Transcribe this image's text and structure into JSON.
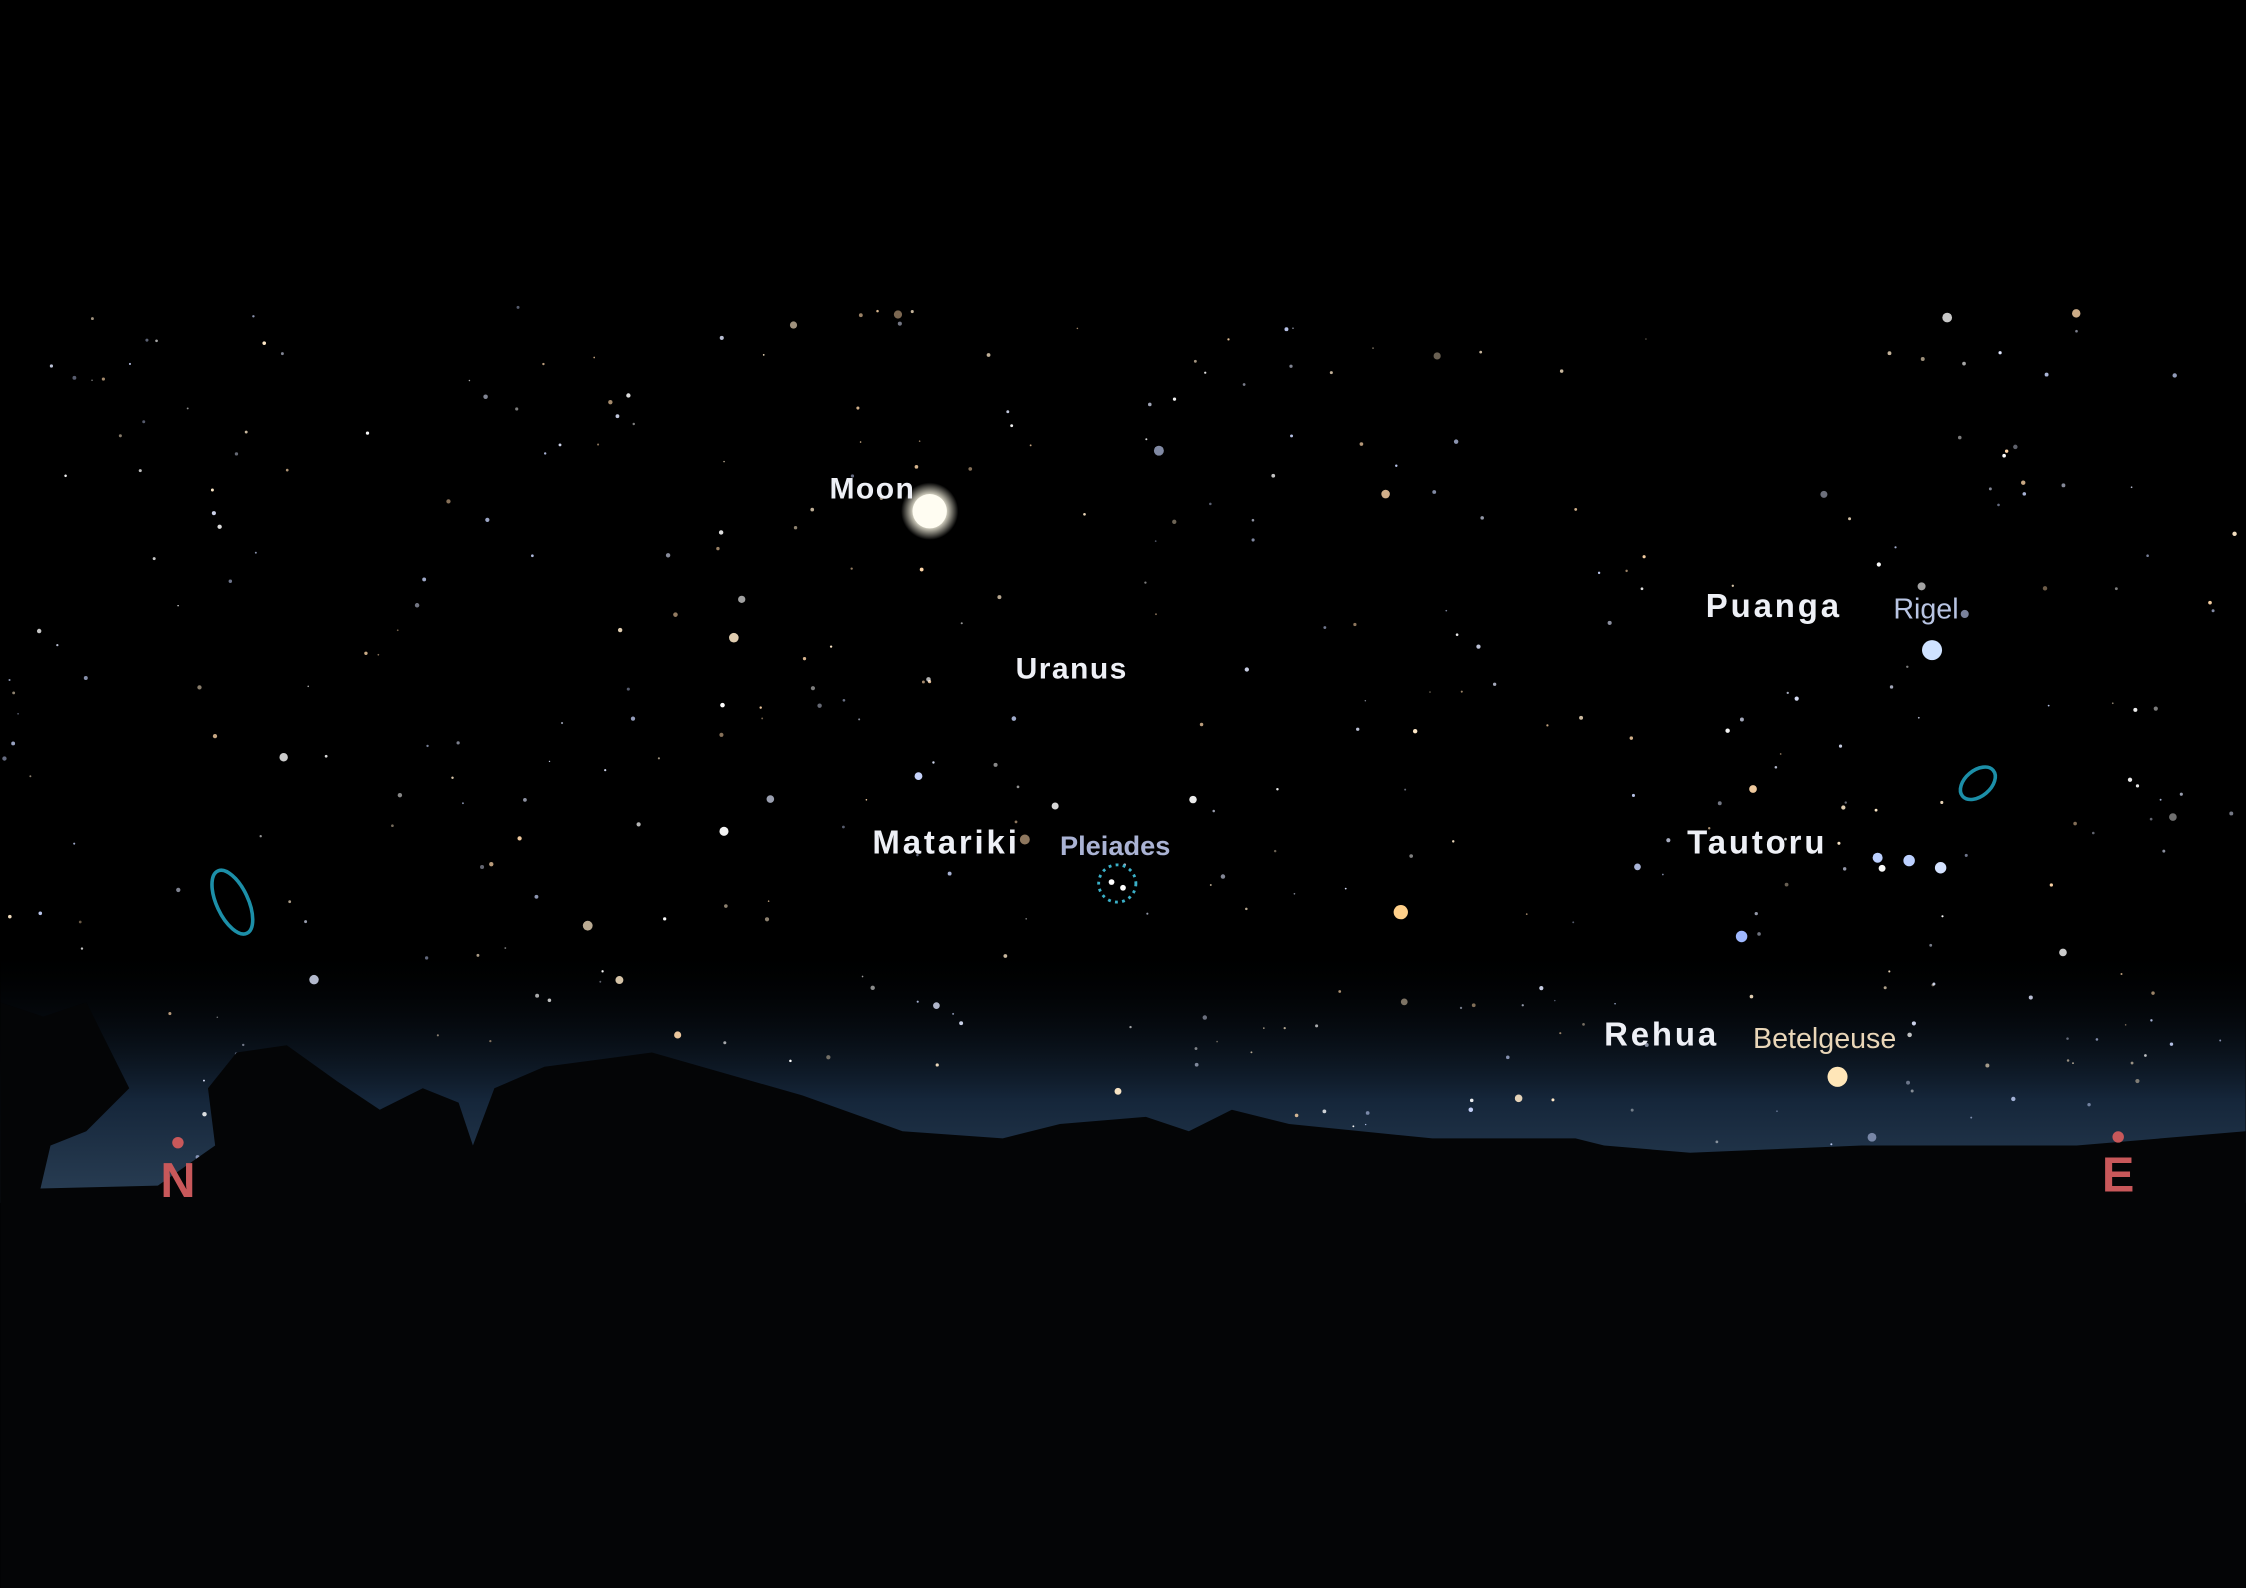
{
  "labels": {
    "moon": "Moon",
    "uranus": "Uranus",
    "matariki": "Matariki",
    "pleiades": "Pleiades",
    "puanga": "Puanga",
    "rigel": "Rigel",
    "tautoru": "Tautoru",
    "rehua": "Rehua",
    "betelgeuse": "Betelgeuse"
  },
  "compass": {
    "north": "N",
    "east": "E"
  }
}
